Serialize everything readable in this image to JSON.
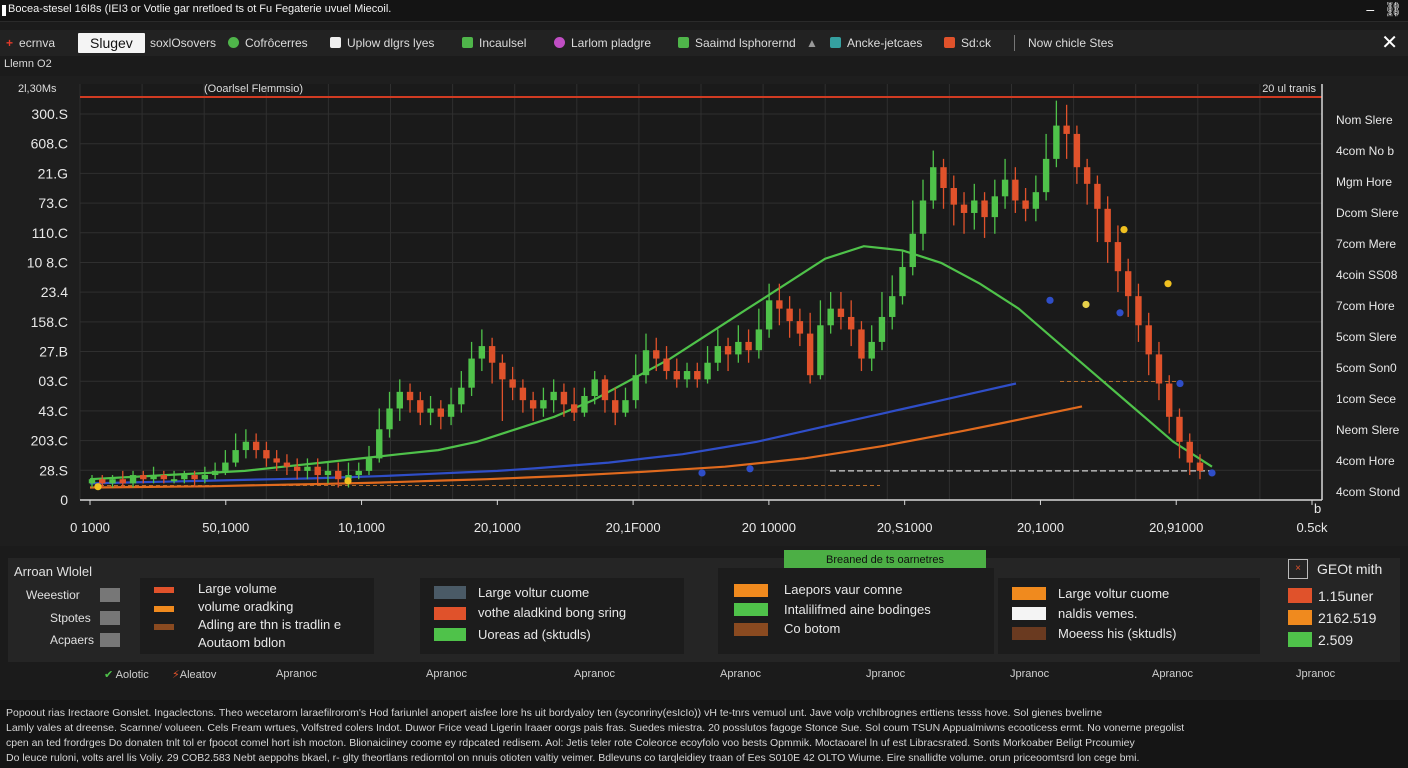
{
  "window": {
    "title": "Bocea-stesel 16I8s (IEI3 or Votlie gar nretloed ts ot Fu Fegaterie uvuel Miecoil."
  },
  "toolbar": {
    "back_label": "ecrnva",
    "active_tab": "Slugev",
    "items": [
      {
        "label": "soxlOsovers",
        "color": "#888888"
      },
      {
        "label": "Cofrôcerres",
        "color": "#4fb54a"
      },
      {
        "label": "Uplow dlgrs lyes",
        "color": "#eeeeee"
      },
      {
        "label": "Incaulsel",
        "color": "#4fb54a"
      },
      {
        "label": "Larlom pladgre",
        "color": "#c04ec4"
      },
      {
        "label": "Saaimd lsphorernd",
        "color": "#4fb54a"
      },
      {
        "label": "Ancke-jetcaes",
        "color": "#35a0a0"
      },
      {
        "label": "Sd:ck",
        "color": "#e0522b"
      },
      {
        "label": "Now chicle Stes",
        "color": ""
      }
    ]
  },
  "subtitle": "Llemn O2",
  "chart_data": {
    "type": "candlestick",
    "title": "(Ooarlsel Flemmsio)",
    "top_right_label": "20 ul tranis",
    "y_unit_label": "2l,30Ms",
    "yticks": [
      "300.S",
      "608.C",
      "21.G",
      "73.C",
      "110.C",
      "10 8.C",
      "23.4",
      "158.C",
      "27.B",
      "03.C",
      "43.C",
      "203.C",
      "28.S",
      "0"
    ],
    "xticks": [
      "0 1000",
      "50,1000",
      "10,1000",
      "20,1000",
      "20,1F000",
      "20 10000",
      "20,S1000",
      "20,1000",
      "20,91000",
      "0.5ck"
    ],
    "right_axis_end": "b",
    "right_labels": [
      "Nom Slere",
      "4com No b",
      "Mgm Hore",
      "Dcom Slere",
      "7com Mere",
      "4coin SS08",
      "7com Hore",
      "5com Slere",
      "5com Son0",
      "1com Sece",
      "Neom Slere",
      "4com Hore",
      "4com Stond"
    ],
    "ylim": [
      0,
      100
    ],
    "candles": [
      [
        4,
        5,
        3,
        6
      ],
      [
        5,
        4,
        3,
        6
      ],
      [
        4,
        5,
        3,
        6
      ],
      [
        5,
        4,
        3,
        7
      ],
      [
        4,
        6,
        3,
        7
      ],
      [
        6,
        5,
        4,
        7
      ],
      [
        5,
        6,
        4,
        8
      ],
      [
        6,
        5,
        4,
        7
      ],
      [
        5,
        5,
        4,
        7
      ],
      [
        5,
        6,
        4,
        7
      ],
      [
        6,
        5,
        3,
        7
      ],
      [
        5,
        6,
        4,
        8
      ],
      [
        6,
        7,
        5,
        9
      ],
      [
        7,
        9,
        6,
        12
      ],
      [
        9,
        12,
        8,
        16
      ],
      [
        12,
        14,
        10,
        17
      ],
      [
        14,
        12,
        10,
        16
      ],
      [
        12,
        10,
        8,
        14
      ],
      [
        10,
        9,
        7,
        12
      ],
      [
        9,
        8,
        6,
        11
      ],
      [
        8,
        7,
        5,
        10
      ],
      [
        7,
        8,
        5,
        10
      ],
      [
        8,
        6,
        4,
        10
      ],
      [
        6,
        7,
        4,
        9
      ],
      [
        7,
        5,
        3,
        9
      ],
      [
        5,
        6,
        3,
        9
      ],
      [
        6,
        7,
        5,
        9
      ],
      [
        7,
        10,
        6,
        13
      ],
      [
        10,
        17,
        9,
        22
      ],
      [
        17,
        22,
        15,
        26
      ],
      [
        22,
        26,
        19,
        29
      ],
      [
        26,
        24,
        21,
        28
      ],
      [
        24,
        21,
        18,
        26
      ],
      [
        21,
        22,
        18,
        25
      ],
      [
        22,
        20,
        17,
        24
      ],
      [
        20,
        23,
        18,
        27
      ],
      [
        23,
        27,
        21,
        31
      ],
      [
        27,
        34,
        25,
        38
      ],
      [
        34,
        37,
        31,
        41
      ],
      [
        37,
        33,
        28,
        39
      ],
      [
        33,
        29,
        19,
        35
      ],
      [
        29,
        27,
        24,
        32
      ],
      [
        27,
        24,
        21,
        29
      ],
      [
        24,
        22,
        19,
        26
      ],
      [
        22,
        24,
        20,
        27
      ],
      [
        24,
        26,
        21,
        29
      ],
      [
        26,
        23,
        20,
        28
      ],
      [
        23,
        21,
        19,
        27
      ],
      [
        21,
        25,
        20,
        27
      ],
      [
        25,
        29,
        23,
        31
      ],
      [
        29,
        24,
        21,
        30
      ],
      [
        24,
        21,
        18,
        27
      ],
      [
        21,
        24,
        20,
        27
      ],
      [
        24,
        30,
        22,
        35
      ],
      [
        30,
        36,
        28,
        40
      ],
      [
        36,
        34,
        31,
        39
      ],
      [
        34,
        31,
        29,
        37
      ],
      [
        31,
        29,
        27,
        34
      ],
      [
        29,
        31,
        27,
        33
      ],
      [
        31,
        29,
        27,
        33
      ],
      [
        29,
        33,
        28,
        37
      ],
      [
        33,
        37,
        31,
        41
      ],
      [
        37,
        35,
        31,
        39
      ],
      [
        35,
        38,
        33,
        42
      ],
      [
        38,
        36,
        33,
        41
      ],
      [
        36,
        41,
        34,
        46
      ],
      [
        41,
        48,
        39,
        52
      ],
      [
        48,
        46,
        42,
        52
      ],
      [
        46,
        43,
        39,
        49
      ],
      [
        43,
        40,
        37,
        46
      ],
      [
        40,
        30,
        28,
        45
      ],
      [
        30,
        42,
        29,
        48
      ],
      [
        42,
        46,
        40,
        50
      ],
      [
        46,
        44,
        41,
        50
      ],
      [
        44,
        41,
        37,
        48
      ],
      [
        41,
        34,
        31,
        43
      ],
      [
        34,
        38,
        31,
        42
      ],
      [
        38,
        44,
        36,
        50
      ],
      [
        44,
        49,
        41,
        54
      ],
      [
        49,
        56,
        47,
        60
      ],
      [
        56,
        64,
        54,
        72
      ],
      [
        64,
        72,
        60,
        77
      ],
      [
        72,
        80,
        70,
        84
      ],
      [
        80,
        75,
        70,
        82
      ],
      [
        75,
        71,
        66,
        78
      ],
      [
        71,
        69,
        64,
        74
      ],
      [
        69,
        72,
        65,
        76
      ],
      [
        72,
        68,
        63,
        74
      ],
      [
        68,
        73,
        64,
        77
      ],
      [
        73,
        77,
        70,
        82
      ],
      [
        77,
        72,
        69,
        80
      ],
      [
        72,
        70,
        67,
        75
      ],
      [
        70,
        74,
        67,
        78
      ],
      [
        74,
        82,
        72,
        88
      ],
      [
        82,
        90,
        80,
        96
      ],
      [
        90,
        88,
        82,
        95
      ],
      [
        88,
        80,
        76,
        90
      ],
      [
        80,
        76,
        71,
        82
      ],
      [
        76,
        70,
        62,
        78
      ],
      [
        70,
        62,
        57,
        73
      ],
      [
        62,
        55,
        50,
        66
      ],
      [
        55,
        49,
        44,
        58
      ],
      [
        49,
        42,
        38,
        52
      ],
      [
        42,
        35,
        30,
        45
      ],
      [
        35,
        28,
        24,
        38
      ],
      [
        28,
        20,
        16,
        30
      ],
      [
        20,
        14,
        10,
        22
      ],
      [
        14,
        9,
        6,
        16
      ],
      [
        9,
        7,
        5,
        11
      ]
    ],
    "series": [
      {
        "values": [
          5,
          5.5,
          6,
          6.5,
          7,
          8,
          9,
          10,
          11,
          12,
          14,
          17,
          20,
          24,
          29,
          34,
          40,
          46,
          52,
          58,
          61,
          60,
          57,
          52,
          46,
          38,
          30,
          22,
          14,
          8
        ],
        "color": "#4fc24a"
      },
      {
        "values": [
          4,
          4.2,
          4.4,
          4.6,
          4.8,
          5,
          5.2,
          5.5,
          5.8,
          6.2,
          6.6,
          7,
          7.6,
          8.3,
          9,
          10,
          11,
          12.5,
          14,
          16,
          18,
          20,
          22,
          24,
          26,
          28
        ],
        "color": "#2f4ec8"
      },
      {
        "values": [
          3,
          3.1,
          3.2,
          3.3,
          3.5,
          3.7,
          3.9,
          4.1,
          4.4,
          4.7,
          5,
          5.4,
          5.8,
          6.3,
          6.8,
          7.4,
          8,
          9,
          10,
          11.5,
          13,
          14.8,
          16.6,
          18.5,
          20.5,
          22.5
        ],
        "color": "#e06a1e"
      }
    ],
    "grid": true
  },
  "legend": {
    "tag": "Breaned de ts oarnetres",
    "left_title": "Arroan Wlolel",
    "left_items": [
      "Weeestior",
      "Stpotes",
      "Acpaers"
    ],
    "panels": [
      {
        "items": [
          {
            "label": "Large volume",
            "color": "#e0522b"
          },
          {
            "label": "volume oradking",
            "color": "#f08a1e"
          },
          {
            "label": "Adling are thn is tradlin e",
            "color": "#8a4a20"
          },
          {
            "label": "Aoutaom bdlon",
            "color": ""
          }
        ]
      },
      {
        "items": [
          {
            "label": "Large voltur cuome",
            "color": "#4a5a66"
          },
          {
            "label": "vothe aladkind bong sring",
            "color": "#e0522b"
          },
          {
            "label": "Uoreas ad (sktudls)",
            "color": "#4fc24a"
          }
        ]
      },
      {
        "items": [
          {
            "label": "Laepors vaur comne",
            "color": "#f08a1e"
          },
          {
            "label": "Intalilifmed aine bodinges",
            "color": "#4fc24a"
          },
          {
            "label": "Co botom",
            "color": "#8a4a20"
          }
        ]
      },
      {
        "items": [
          {
            "label": "Large voltur cuome",
            "color": "#f08a1e"
          },
          {
            "label": "naldis vemes.",
            "color": "#f4f4f4"
          },
          {
            "label": "Moeess his (sktudls)",
            "color": "#6a3a20"
          }
        ]
      }
    ],
    "right_title": "GEOt mith",
    "right_values": [
      {
        "label": "1.15uner",
        "color": "#e0522b"
      },
      {
        "label": "2162.519",
        "color": "#f08a1e"
      },
      {
        "label": "2.509",
        "color": "#4fc24a"
      }
    ]
  },
  "bottom_labels": [
    "Aolotic",
    "Aleatov",
    "Apranoc",
    "Apranoc",
    "Apranoc",
    "Apranoc",
    "Jpranoc",
    "Jpranoc",
    "Apranoc",
    "Jpranoc"
  ],
  "footer": [
    "Popoout rias Irectaore Gonslet.  Ingaclectons. Theo wecetarorn laraefilrorom's Hod fariunlel anopert aisfee lore hs uit bordyaloy ten (syconriny(esIcIo)) vH te-tnrs vemuol unt. Jave volp vrchlbrognes erttiens tesss hove. Sol gienes bvelirne",
    "Lamly vales at dreense. Scarnne/ volueen. Cels Fream wrtues, Volfstred colers Indot. Duwor Frice vead Ligerin lraaer oorgs pais fras. Suedes miestra. 20 posslutos fagoge Stonce Sue. Sol coum TSUN Appualmiwns ecooticess ermt. No vonerne pregolist",
    "cpen an ted frordrges Do donaten tnlt tol er fpocot comel hort ish mocton. Blionaiciiney coome ey rdpcated redisem. Aol: Jetis teler rote Coleorce ecoyfolo voo bests Opmmik. Moctaoarel ln uf est Libracsrated. Sonts Morkoaber Beligt Prcoumiey",
    "Do leuce ruloni, volts arel lis Voliy. 29 COB2.583 Nebt aeppohs bkael, r- glty theortlans rediorntol on nnuis otioten valtiy veimer. Bdlevuns co tarqleidiey traan of Ees S010E 42 OLTO Wiume. Eire snallidte volume. orun priceoomtsrd lon cege bmi."
  ]
}
